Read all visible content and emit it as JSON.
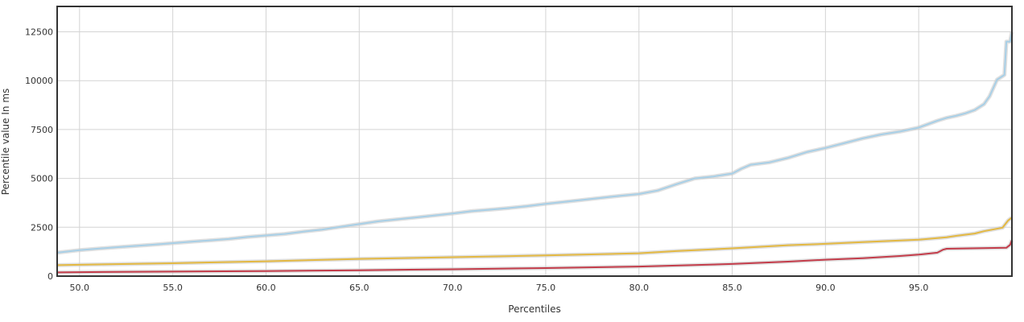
{
  "colors": {
    "background": "#ffffff",
    "grid": "#d4d4d4",
    "frame": "#333333",
    "text": "#333333"
  },
  "chart_data": {
    "type": "line",
    "title": "",
    "xlabel": "Percentiles",
    "ylabel": "Percentile value In ms",
    "xlim": [
      48.8,
      100
    ],
    "ylim": [
      0,
      13800
    ],
    "x_ticks": [
      50,
      55,
      60,
      65,
      70,
      75,
      80,
      85,
      90,
      95
    ],
    "x_tick_labels": [
      "50.0",
      "55.0",
      "60.0",
      "65.0",
      "70.0",
      "75.0",
      "80.0",
      "85.0",
      "90.0",
      "95.0"
    ],
    "y_ticks": [
      0,
      2500,
      5000,
      7500,
      10000,
      12500
    ],
    "y_tick_labels": [
      "0",
      "2500",
      "5000",
      "7500",
      "10000",
      "12500"
    ],
    "grid": true,
    "legend": "none",
    "series": [
      {
        "color": "#a8cfe6",
        "x": [
          48.8,
          50,
          52,
          54,
          56,
          58,
          59,
          60,
          61,
          62,
          63,
          64,
          65,
          66,
          68,
          70,
          71,
          72,
          73,
          74,
          75,
          76,
          77,
          78,
          79,
          80,
          81,
          82,
          83,
          84,
          85,
          85.5,
          86,
          87,
          88,
          89,
          90,
          91,
          92,
          93,
          94,
          95,
          96,
          96.5,
          97,
          97.5,
          98,
          98.5,
          98.8,
          99.2,
          99.6,
          99.7,
          99.9,
          100
        ],
        "values": [
          1200,
          1330,
          1480,
          1610,
          1760,
          1900,
          2000,
          2080,
          2160,
          2280,
          2380,
          2520,
          2660,
          2800,
          3000,
          3200,
          3320,
          3400,
          3480,
          3580,
          3700,
          3800,
          3900,
          4010,
          4110,
          4200,
          4380,
          4700,
          5000,
          5100,
          5250,
          5500,
          5700,
          5820,
          6050,
          6350,
          6560,
          6800,
          7050,
          7250,
          7400,
          7600,
          7950,
          8100,
          8200,
          8330,
          8500,
          8800,
          9200,
          10050,
          10300,
          12000,
          12000,
          12500
        ]
      },
      {
        "color": "#e3b842",
        "x": [
          48.8,
          50,
          55,
          60,
          65,
          70,
          75,
          80,
          82,
          85,
          88,
          90,
          92,
          95,
          96.5,
          97,
          98,
          98.5,
          99.5,
          99.8,
          100
        ],
        "values": [
          560,
          580,
          660,
          760,
          880,
          970,
          1060,
          1170,
          1280,
          1420,
          1580,
          1650,
          1740,
          1860,
          1990,
          2060,
          2180,
          2300,
          2480,
          2850,
          3000
        ]
      },
      {
        "color": "#c33c4a",
        "x": [
          48.8,
          50,
          55,
          60,
          65,
          70,
          75,
          80,
          85,
          88,
          90,
          92,
          94,
          95,
          96,
          96.3,
          96.5,
          99.7,
          99.9,
          100
        ],
        "values": [
          190,
          200,
          230,
          260,
          300,
          350,
          410,
          490,
          620,
          740,
          840,
          920,
          1030,
          1100,
          1200,
          1350,
          1400,
          1450,
          1600,
          1850
        ]
      }
    ]
  }
}
